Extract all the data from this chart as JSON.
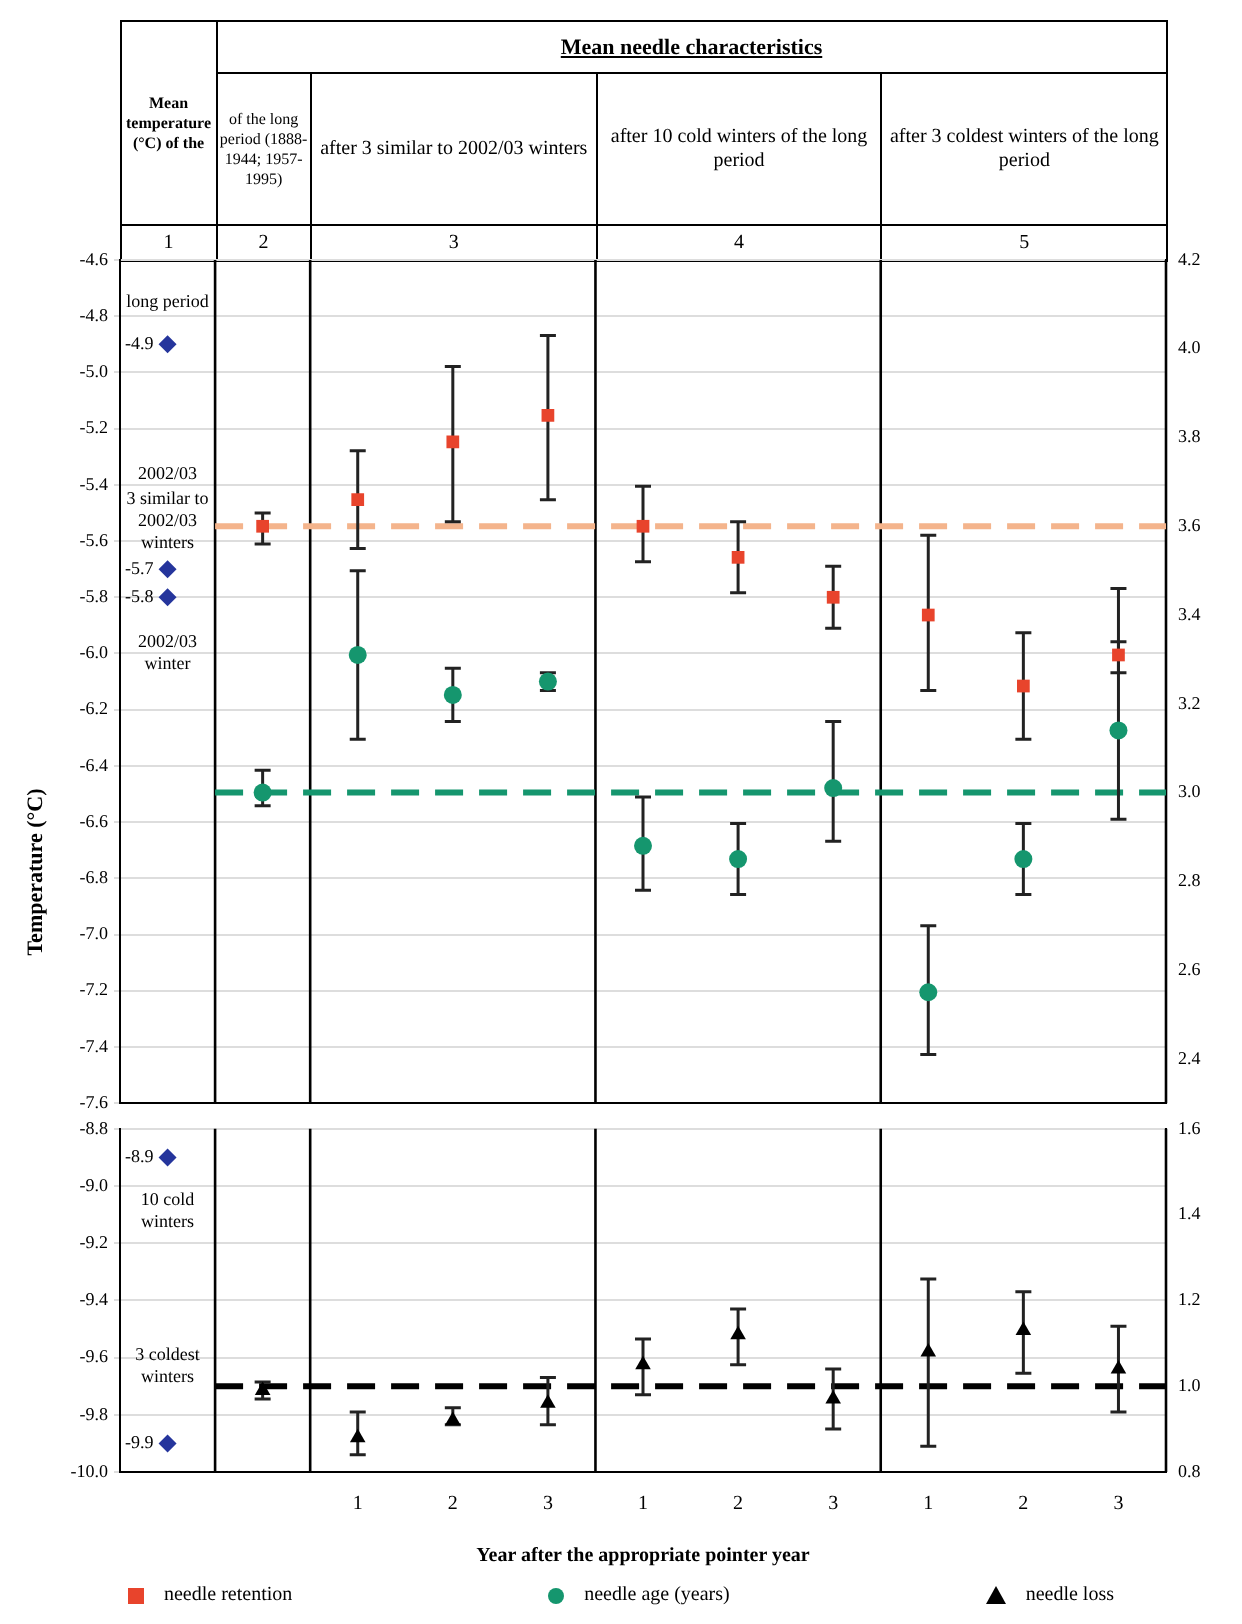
{
  "chart_data": [
    {
      "type": "scatter",
      "title": "Mean needle characteristics",
      "ylabel": "Temperature (°C)",
      "categories": [
        null,
        null,
        "1",
        "2",
        "3",
        "1",
        "2",
        "3",
        "1",
        "2",
        "3"
      ],
      "series": [
        {
          "name": "needle retention",
          "color": "#e8442c",
          "marker": "square",
          "axis": "y2",
          "values": [
            null,
            3.6,
            3.66,
            3.79,
            3.85,
            3.6,
            3.53,
            3.44,
            3.4,
            3.24,
            3.31
          ],
          "errors": [
            null,
            [
              3.56,
              3.63
            ],
            [
              3.55,
              3.77
            ],
            [
              3.61,
              3.96
            ],
            [
              3.66,
              4.03
            ],
            [
              3.52,
              3.69
            ],
            [
              3.45,
              3.61
            ],
            [
              3.37,
              3.51
            ],
            [
              3.23,
              3.58
            ],
            [
              3.12,
              3.36
            ],
            [
              3.27,
              3.34
            ]
          ]
        },
        {
          "name": "needle age (years)",
          "color": "#15966e",
          "marker": "circle",
          "axis": "y2",
          "values": [
            null,
            3.0,
            3.31,
            3.22,
            3.25,
            2.88,
            2.85,
            3.01,
            2.55,
            2.85,
            3.14
          ],
          "errors": [
            null,
            [
              2.97,
              3.05
            ],
            [
              3.12,
              3.5
            ],
            [
              3.16,
              3.28
            ],
            [
              3.23,
              3.27
            ],
            [
              2.78,
              2.99
            ],
            [
              2.77,
              2.93
            ],
            [
              2.89,
              3.16
            ],
            [
              2.41,
              2.7
            ],
            [
              2.77,
              2.93
            ],
            [
              2.94,
              3.46
            ]
          ]
        },
        {
          "color": "#25359c",
          "marker": "diamond",
          "values": [
            -4.9,
            null,
            null,
            null,
            null,
            null,
            null,
            null,
            null,
            null,
            null
          ],
          "value_labels": [
            "-4.9",
            null,
            null,
            null,
            null,
            null,
            null,
            null,
            null,
            null,
            null
          ]
        },
        {
          "color": "#25359c",
          "marker": "diamond",
          "values": [
            -5.7,
            null,
            null,
            null,
            null,
            null,
            null,
            null,
            null,
            null,
            null
          ],
          "value_labels": [
            "-5.7",
            null,
            null,
            null,
            null,
            null,
            null,
            null,
            null,
            null,
            null
          ]
        },
        {
          "color": "#25359c",
          "marker": "diamond",
          "values": [
            -5.8,
            null,
            null,
            null,
            null,
            null,
            null,
            null,
            null,
            null,
            null
          ],
          "value_labels": [
            "-5.8",
            null,
            null,
            null,
            null,
            null,
            null,
            null,
            null,
            null,
            null
          ]
        }
      ],
      "ylim": [
        -7.6,
        -4.6
      ],
      "yticks": [
        -4.6,
        -4.8,
        {
          "value": -5,
          "label": "-5.0"
        },
        -5.2,
        -5.4,
        -5.6,
        -5.8,
        {
          "value": -6,
          "label": "-6.0"
        },
        -6.2,
        -6.4,
        -6.6,
        -6.8,
        {
          "value": -7,
          "label": "-7.0"
        },
        -7.2,
        -7.4,
        -7.6
      ],
      "y2lim": [
        2.3,
        4.2
      ],
      "y2ticks": [
        4.2,
        {
          "value": 4,
          "label": "4.0"
        },
        3.8,
        3.6,
        3.4,
        3.2,
        {
          "value": 3,
          "label": "3.0"
        },
        2.8,
        2.6,
        2.4
      ],
      "ref_lines": [
        {
          "axis": "y2",
          "value": 3.6,
          "color": "#f4b48c",
          "line_style": "dashed"
        },
        {
          "axis": "y2",
          "value": 3.0,
          "color": "#15966e",
          "line_style": "dashed"
        }
      ],
      "annotations": [
        "Mean temperature (°C) of the",
        "of the long period (1888-1944; 1957-1995)",
        "after 3 similar to 2002/03 winters",
        "after 10 cold winters of the long period",
        "after 3 coldest winters of the long period",
        "1",
        "2",
        "3",
        "4",
        "5",
        "long period",
        "2002/03",
        "3 similar to 2002/03 winters",
        "2002/03 winter"
      ],
      "grid": "y",
      "legend": "bottom",
      "tick_labels": "y"
    },
    {
      "type": "scatter",
      "xlabel": "Year after the appropriate pointer year",
      "categories": [
        null,
        null,
        "1",
        "2",
        "3",
        "1",
        "2",
        "3",
        "1",
        "2",
        "3"
      ],
      "series": [
        {
          "name": "needle loss",
          "color": "#000000",
          "marker": "triangle",
          "axis": "y2",
          "values": [
            null,
            0.99,
            0.88,
            0.92,
            0.96,
            1.05,
            1.12,
            0.97,
            1.08,
            1.13,
            1.04
          ],
          "errors": [
            null,
            [
              0.97,
              1.01
            ],
            [
              0.84,
              0.94
            ],
            [
              0.91,
              0.95
            ],
            [
              0.91,
              1.02
            ],
            [
              0.98,
              1.11
            ],
            [
              1.05,
              1.18
            ],
            [
              0.9,
              1.04
            ],
            [
              0.86,
              1.25
            ],
            [
              1.03,
              1.22
            ],
            [
              0.94,
              1.14
            ]
          ]
        },
        {
          "color": "#25359c",
          "marker": "diamond",
          "values": [
            -8.9,
            null,
            null,
            null,
            null,
            null,
            null,
            null,
            null,
            null,
            null
          ],
          "value_labels": [
            "-8.9",
            null,
            null,
            null,
            null,
            null,
            null,
            null,
            null,
            null,
            null
          ]
        },
        {
          "color": "#25359c",
          "marker": "diamond",
          "values": [
            -9.9,
            null,
            null,
            null,
            null,
            null,
            null,
            null,
            null,
            null,
            null
          ],
          "value_labels": [
            "-9.9",
            null,
            null,
            null,
            null,
            null,
            null,
            null,
            null,
            null,
            null
          ]
        }
      ],
      "ylim": [
        -10.0,
        -8.8
      ],
      "yticks": [
        -8.8,
        {
          "value": -9,
          "label": "-9.0"
        },
        -9.2,
        -9.4,
        -9.6,
        -9.8,
        {
          "value": -10,
          "label": "-10.0"
        }
      ],
      "y2lim": [
        0.8,
        1.6
      ],
      "y2ticks": [
        1.6,
        1.4,
        1.2,
        {
          "value": 1,
          "label": "1.0"
        },
        0.8
      ],
      "ref_lines": [
        {
          "axis": "y2",
          "value": 1.0,
          "color": "#000000",
          "line_style": "dashed"
        }
      ],
      "annotations": [
        "10 cold winters",
        "3 coldest winters"
      ],
      "grid": "y",
      "legend": "bottom"
    }
  ]
}
